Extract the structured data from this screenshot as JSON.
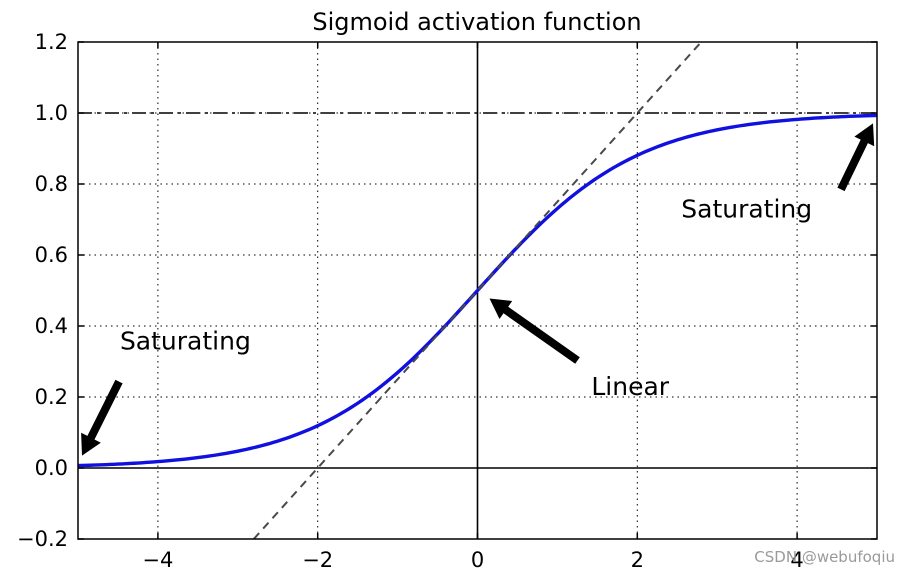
{
  "chart_data": {
    "type": "line",
    "title": "Sigmoid activation function",
    "xlabel": "",
    "ylabel": "",
    "xlim": [
      -5,
      5
    ],
    "ylim": [
      -0.2,
      1.2
    ],
    "grid": true,
    "grid_style": "dotted",
    "x_ticks": [
      -4,
      -2,
      0,
      2,
      4
    ],
    "x_tick_labels": [
      "−4",
      "−2",
      "0",
      "2",
      "4"
    ],
    "y_ticks": [
      -0.2,
      0.0,
      0.2,
      0.4,
      0.6,
      0.8,
      1.0,
      1.2
    ],
    "y_tick_labels": [
      "−0.2",
      "0.0",
      "0.2",
      "0.4",
      "0.6",
      "0.8",
      "1.0",
      "1.2"
    ],
    "series": [
      {
        "name": "sigmoid",
        "function": "1/(1+exp(-x))",
        "color": "#1010e0",
        "style": "solid",
        "x": [
          -5,
          -4.5,
          -4,
          -3.5,
          -3,
          -2.5,
          -2,
          -1.5,
          -1,
          -0.5,
          0,
          0.5,
          1,
          1.5,
          2,
          2.5,
          3,
          3.5,
          4,
          4.5,
          5
        ],
        "values": [
          0.0067,
          0.011,
          0.018,
          0.0293,
          0.0474,
          0.0759,
          0.1192,
          0.1824,
          0.2689,
          0.3775,
          0.5,
          0.6225,
          0.7311,
          0.8176,
          0.8808,
          0.9241,
          0.9526,
          0.9707,
          0.982,
          0.989,
          0.9933
        ]
      },
      {
        "name": "tangent at 0",
        "function": "0.25*x+0.5",
        "color": "#4a4a4a",
        "style": "dashed",
        "x": [
          -2.8,
          2.8
        ],
        "values": [
          -0.2,
          1.2
        ]
      }
    ],
    "reference_lines": [
      {
        "name": "y=1 asymptote",
        "axis": "y",
        "value": 1.0,
        "style": "dashdot",
        "color": "#000000"
      },
      {
        "name": "y=0 axis",
        "axis": "y",
        "value": 0.0,
        "style": "solid",
        "color": "#000000"
      },
      {
        "name": "x=0 axis",
        "axis": "x",
        "value": 0.0,
        "style": "solid",
        "color": "#000000"
      }
    ],
    "annotations": [
      {
        "name": "saturating-left",
        "text": "Saturating",
        "arrow_tip": [
          -5,
          0.0067
        ],
        "text_pos": [
          -4.5,
          0.3
        ]
      },
      {
        "name": "linear",
        "text": "Linear",
        "arrow_tip": [
          0,
          0.5
        ],
        "text_pos": [
          1.4,
          0.2
        ]
      },
      {
        "name": "saturating-right",
        "text": "Saturating",
        "arrow_tip": [
          5,
          0.9933
        ],
        "text_pos": [
          2.5,
          0.7
        ]
      }
    ]
  },
  "watermark": "CSDN @webufoqiu"
}
